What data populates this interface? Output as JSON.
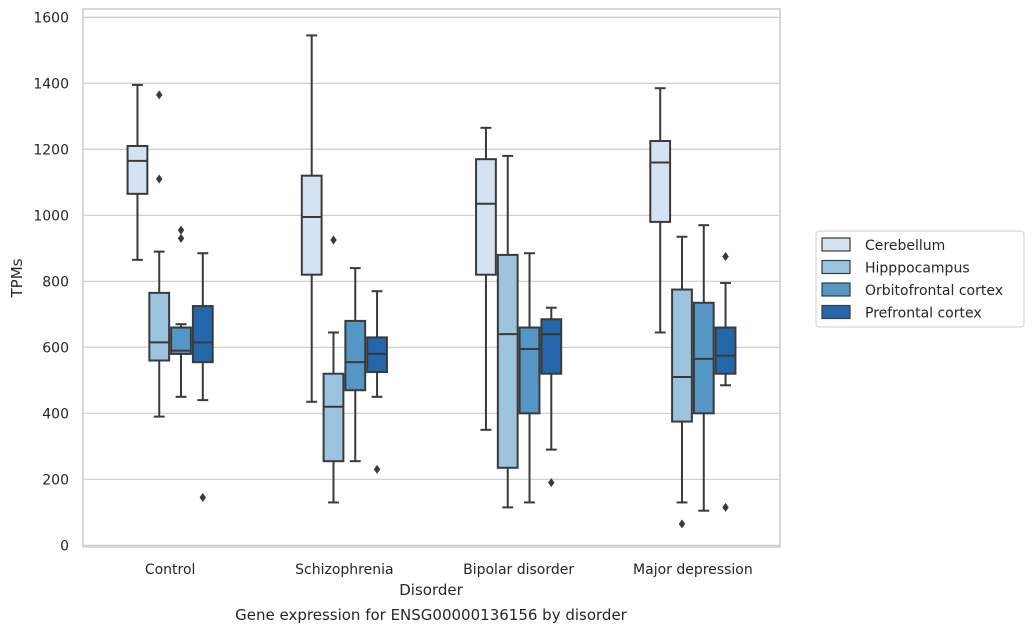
{
  "caption": "Gene expression for ENSG00000136156 by disorder",
  "chart_data": {
    "type": "box",
    "title": "",
    "xlabel": "Disorder",
    "ylabel": "TPMs",
    "ylim": [
      -5,
      1625
    ],
    "yticks": [
      0,
      200,
      400,
      600,
      800,
      1000,
      1200,
      1400,
      1600
    ],
    "grid": "horizontal",
    "legend_position": "right",
    "categories": [
      "Control",
      "Schizophrenia",
      "Bipolar disorder",
      "Major depression"
    ],
    "series": [
      {
        "name": "Cerebellum",
        "color": "#d4e2f2",
        "boxes": [
          {
            "whislo": 865,
            "q1": 1065,
            "med": 1165,
            "q3": 1210,
            "whishi": 1395,
            "fliers": []
          },
          {
            "whislo": 435,
            "q1": 820,
            "med": 995,
            "q3": 1120,
            "whishi": 1545,
            "fliers": []
          },
          {
            "whislo": 350,
            "q1": 820,
            "med": 1035,
            "q3": 1170,
            "whishi": 1265,
            "fliers": []
          },
          {
            "whislo": 645,
            "q1": 980,
            "med": 1160,
            "q3": 1225,
            "whishi": 1385,
            "fliers": []
          }
        ]
      },
      {
        "name": "Hipppocampus",
        "color": "#9dc4de",
        "boxes": [
          {
            "whislo": 390,
            "q1": 560,
            "med": 615,
            "q3": 765,
            "whishi": 890,
            "fliers": [
              1365,
              1110
            ]
          },
          {
            "whislo": 130,
            "q1": 255,
            "med": 420,
            "q3": 520,
            "whishi": 645,
            "fliers": [
              925
            ]
          },
          {
            "whislo": 115,
            "q1": 235,
            "med": 640,
            "q3": 880,
            "whishi": 1180,
            "fliers": []
          },
          {
            "whislo": 130,
            "q1": 375,
            "med": 510,
            "q3": 775,
            "whishi": 935,
            "fliers": [
              65
            ]
          }
        ]
      },
      {
        "name": "Orbitofrontal cortex",
        "color": "#5496c4",
        "boxes": [
          {
            "whislo": 450,
            "q1": 580,
            "med": 590,
            "q3": 660,
            "whishi": 670,
            "fliers": [
              955,
              930
            ]
          },
          {
            "whislo": 255,
            "q1": 470,
            "med": 555,
            "q3": 680,
            "whishi": 840,
            "fliers": []
          },
          {
            "whislo": 130,
            "q1": 400,
            "med": 595,
            "q3": 660,
            "whishi": 885,
            "fliers": []
          },
          {
            "whislo": 105,
            "q1": 400,
            "med": 565,
            "q3": 735,
            "whishi": 970,
            "fliers": []
          }
        ]
      },
      {
        "name": "Prefrontal cortex",
        "color": "#2366aa",
        "boxes": [
          {
            "whislo": 440,
            "q1": 555,
            "med": 615,
            "q3": 725,
            "whishi": 885,
            "fliers": [
              145
            ]
          },
          {
            "whislo": 450,
            "q1": 525,
            "med": 580,
            "q3": 630,
            "whishi": 770,
            "fliers": [
              230
            ]
          },
          {
            "whislo": 290,
            "q1": 520,
            "med": 640,
            "q3": 685,
            "whishi": 720,
            "fliers": [
              190
            ]
          },
          {
            "whislo": 485,
            "q1": 520,
            "med": 575,
            "q3": 660,
            "whishi": 795,
            "fliers": [
              875,
              115
            ]
          }
        ]
      }
    ]
  }
}
